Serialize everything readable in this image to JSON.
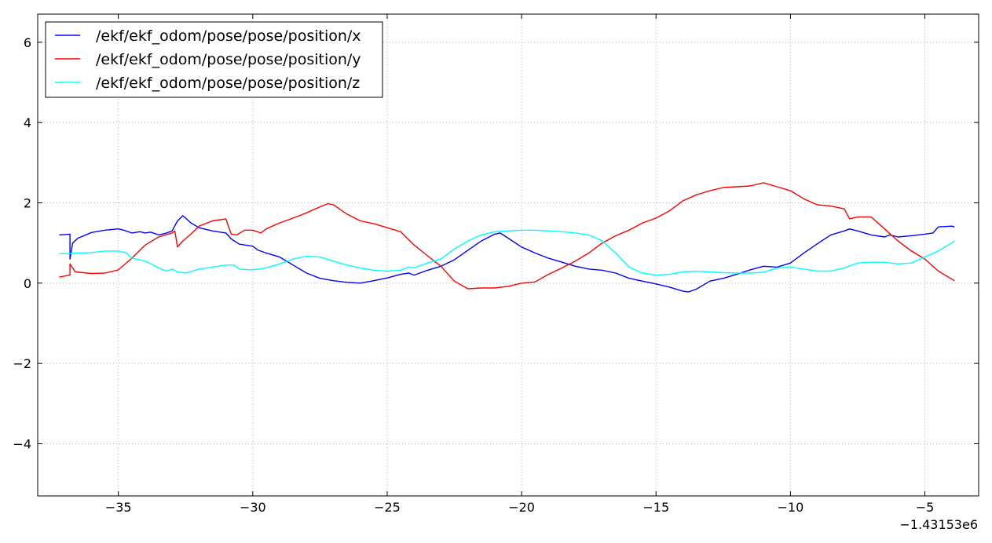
{
  "chart_data": {
    "type": "line",
    "title": "",
    "xlabel": "",
    "ylabel": "",
    "x_offset_label": "−1.43153e6",
    "xlim": [
      -38,
      -3
    ],
    "ylim": [
      -5.3,
      6.7
    ],
    "x_ticks": [
      -35,
      -30,
      -25,
      -20,
      -15,
      -10,
      -5
    ],
    "x_tick_labels": [
      "−35",
      "−30",
      "−25",
      "−20",
      "−15",
      "−10",
      "−5"
    ],
    "y_ticks": [
      -4,
      -2,
      0,
      2,
      4,
      6
    ],
    "y_tick_labels": [
      "−4",
      "−2",
      "0",
      "2",
      "4",
      "6"
    ],
    "grid": true,
    "legend_position": "top-left",
    "series": [
      {
        "name": "/ekf/ekf_odom/pose/pose/position/x",
        "color": "#0000ff",
        "x": [
          -37.2,
          -36.8,
          -36.8,
          -36.7,
          -36.5,
          -36.0,
          -35.5,
          -35.0,
          -34.8,
          -34.5,
          -34.2,
          -34.0,
          -33.8,
          -33.5,
          -33.2,
          -33.0,
          -32.8,
          -32.6,
          -32.5,
          -32.3,
          -32.0,
          -31.5,
          -31.0,
          -30.8,
          -30.5,
          -30.0,
          -29.8,
          -29.5,
          -29.0,
          -28.5,
          -28.0,
          -27.5,
          -27.0,
          -26.5,
          -26.0,
          -25.5,
          -25.0,
          -24.5,
          -24.2,
          -24.0,
          -23.5,
          -23.0,
          -22.5,
          -22.0,
          -21.5,
          -21.0,
          -20.8,
          -20.5,
          -20.0,
          -19.5,
          -19.0,
          -18.8,
          -18.0,
          -17.5,
          -17.0,
          -16.5,
          -16.0,
          -15.5,
          -15.0,
          -14.5,
          -14.0,
          -13.8,
          -13.5,
          -13.0,
          -12.5,
          -12.0,
          -11.5,
          -11.0,
          -10.5,
          -10.0,
          -9.5,
          -9.0,
          -8.5,
          -8.0,
          -7.8,
          -7.5,
          -7.0,
          -6.5,
          -6.3,
          -6.0,
          -5.5,
          -5.0,
          -4.7,
          -4.5,
          -4.0,
          -3.9
        ],
        "y": [
          1.2,
          1.22,
          0.6,
          1.0,
          1.12,
          1.26,
          1.32,
          1.35,
          1.32,
          1.25,
          1.28,
          1.25,
          1.27,
          1.2,
          1.25,
          1.3,
          1.55,
          1.68,
          1.62,
          1.5,
          1.38,
          1.3,
          1.25,
          1.1,
          0.97,
          0.92,
          0.82,
          0.75,
          0.65,
          0.45,
          0.25,
          0.12,
          0.06,
          0.02,
          0.0,
          0.06,
          0.13,
          0.22,
          0.25,
          0.2,
          0.32,
          0.42,
          0.58,
          0.82,
          1.05,
          1.22,
          1.25,
          1.12,
          0.9,
          0.75,
          0.62,
          0.58,
          0.42,
          0.35,
          0.32,
          0.25,
          0.12,
          0.05,
          -0.02,
          -0.1,
          -0.2,
          -0.22,
          -0.15,
          0.05,
          0.12,
          0.22,
          0.33,
          0.42,
          0.4,
          0.5,
          0.75,
          0.98,
          1.2,
          1.3,
          1.35,
          1.3,
          1.2,
          1.15,
          1.2,
          1.15,
          1.18,
          1.22,
          1.25,
          1.4,
          1.42,
          1.4
        ]
      },
      {
        "name": "/ekf/ekf_odom/pose/pose/position/y",
        "color": "#ff0000",
        "x": [
          -37.2,
          -36.8,
          -36.8,
          -36.6,
          -36.0,
          -35.5,
          -35.0,
          -34.5,
          -34.0,
          -33.5,
          -33.0,
          -32.9,
          -32.8,
          -32.6,
          -32.3,
          -32.0,
          -31.5,
          -31.0,
          -30.8,
          -30.6,
          -30.3,
          -30.0,
          -29.7,
          -29.5,
          -29.0,
          -28.5,
          -28.0,
          -27.5,
          -27.2,
          -27.0,
          -26.5,
          -26.0,
          -25.5,
          -25.0,
          -24.5,
          -24.0,
          -23.5,
          -23.0,
          -22.5,
          -22.0,
          -21.5,
          -21.0,
          -20.5,
          -20.0,
          -19.5,
          -19.0,
          -18.5,
          -18.0,
          -17.5,
          -17.0,
          -16.5,
          -16.0,
          -15.5,
          -15.0,
          -14.5,
          -14.0,
          -13.5,
          -13.0,
          -12.5,
          -12.0,
          -11.5,
          -11.0,
          -10.5,
          -10.0,
          -9.5,
          -9.0,
          -8.5,
          -8.0,
          -7.8,
          -7.5,
          -7.0,
          -6.5,
          -6.0,
          -5.5,
          -5.0,
          -4.5,
          -4.0,
          -3.9
        ],
        "y": [
          0.15,
          0.2,
          0.48,
          0.28,
          0.24,
          0.25,
          0.33,
          0.62,
          0.95,
          1.15,
          1.25,
          1.3,
          0.9,
          1.05,
          1.22,
          1.42,
          1.55,
          1.6,
          1.22,
          1.2,
          1.32,
          1.32,
          1.25,
          1.35,
          1.5,
          1.62,
          1.75,
          1.9,
          1.98,
          1.95,
          1.72,
          1.55,
          1.48,
          1.38,
          1.28,
          0.95,
          0.68,
          0.42,
          0.05,
          -0.14,
          -0.12,
          -0.12,
          -0.08,
          0.0,
          0.03,
          0.22,
          0.38,
          0.55,
          0.75,
          1.0,
          1.18,
          1.32,
          1.5,
          1.62,
          1.8,
          2.05,
          2.2,
          2.3,
          2.38,
          2.4,
          2.42,
          2.5,
          2.4,
          2.3,
          2.1,
          1.95,
          1.92,
          1.85,
          1.6,
          1.65,
          1.65,
          1.35,
          1.05,
          0.8,
          0.6,
          0.3,
          0.1,
          0.06
        ]
      },
      {
        "name": "/ekf/ekf_odom/pose/pose/position/z",
        "color": "#00ffff",
        "x": [
          -37.2,
          -36.5,
          -36.0,
          -35.5,
          -35.0,
          -34.7,
          -34.5,
          -34.0,
          -33.7,
          -33.5,
          -33.2,
          -33.0,
          -32.8,
          -32.5,
          -32.0,
          -31.5,
          -31.0,
          -30.7,
          -30.5,
          -30.0,
          -29.5,
          -29.0,
          -28.5,
          -28.0,
          -27.5,
          -27.0,
          -26.5,
          -26.0,
          -25.5,
          -25.0,
          -24.5,
          -24.2,
          -24.0,
          -23.5,
          -23.0,
          -22.5,
          -22.0,
          -21.5,
          -21.0,
          -20.5,
          -20.0,
          -19.5,
          -19.0,
          -18.5,
          -18.0,
          -17.5,
          -17.0,
          -16.5,
          -16.0,
          -15.5,
          -15.0,
          -14.5,
          -14.0,
          -13.5,
          -13.0,
          -12.5,
          -12.0,
          -11.5,
          -11.0,
          -10.5,
          -10.0,
          -9.5,
          -9.0,
          -8.5,
          -8.0,
          -7.5,
          -7.0,
          -6.5,
          -6.0,
          -5.5,
          -5.0,
          -4.5,
          -4.0,
          -3.9
        ],
        "y": [
          0.73,
          0.75,
          0.76,
          0.8,
          0.8,
          0.75,
          0.62,
          0.55,
          0.45,
          0.38,
          0.3,
          0.35,
          0.28,
          0.25,
          0.35,
          0.4,
          0.45,
          0.45,
          0.35,
          0.33,
          0.38,
          0.48,
          0.6,
          0.67,
          0.65,
          0.55,
          0.45,
          0.38,
          0.32,
          0.3,
          0.32,
          0.4,
          0.38,
          0.5,
          0.6,
          0.85,
          1.05,
          1.2,
          1.28,
          1.3,
          1.32,
          1.32,
          1.3,
          1.28,
          1.25,
          1.2,
          1.05,
          0.75,
          0.4,
          0.25,
          0.2,
          0.22,
          0.28,
          0.3,
          0.28,
          0.26,
          0.25,
          0.25,
          0.27,
          0.38,
          0.4,
          0.35,
          0.3,
          0.3,
          0.38,
          0.5,
          0.52,
          0.52,
          0.48,
          0.5,
          0.65,
          0.8,
          1.0,
          1.05
        ]
      }
    ]
  }
}
